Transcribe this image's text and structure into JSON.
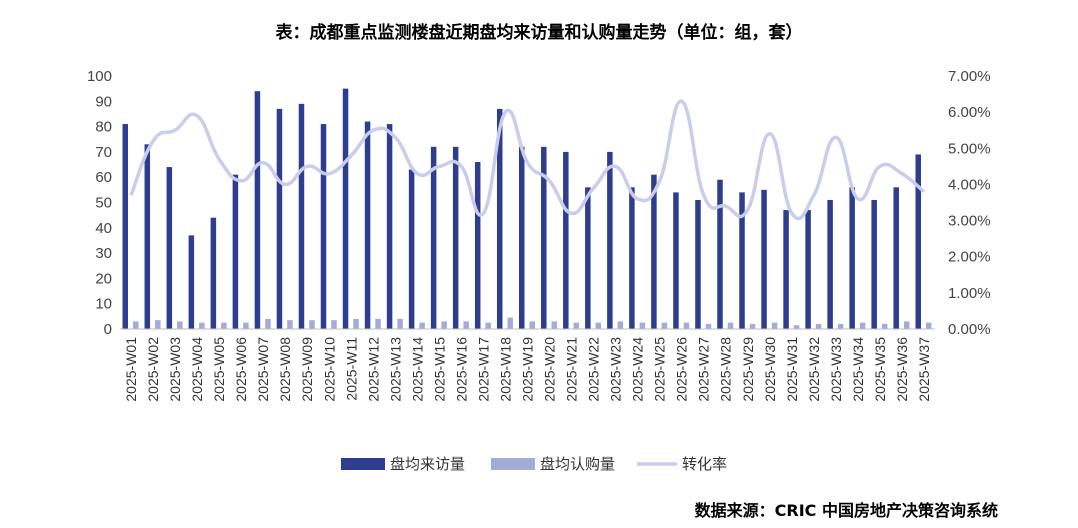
{
  "title": "表：成都重点监测楼盘近期盘均来访量和认购量走势（单位：组，套）",
  "source": "数据来源：CRIC 中国房地产决策咨询系统",
  "colors": {
    "visits": "#2e3d8f",
    "subscriptions": "#a3acd9",
    "conversion": "#c9cdea"
  },
  "chart_data": {
    "type": "bar",
    "categories": [
      "2025-W01",
      "2025-W02",
      "2025-W03",
      "2025-W04",
      "2025-W05",
      "2025-W06",
      "2025-W07",
      "2025-W08",
      "2025-W09",
      "2025-W10",
      "2025-W11",
      "2025-W12",
      "2025-W13",
      "2025-W14",
      "2025-W15",
      "2025-W16",
      "2025-W17",
      "2025-W18",
      "2025-W19",
      "2025-W20",
      "2025-W21",
      "2025-W22",
      "2025-W23",
      "2025-W24",
      "2025-W25",
      "2025-W26",
      "2025-W27",
      "2025-W28",
      "2025-W29",
      "2025-W30",
      "2025-W31",
      "2025-W32",
      "2025-W33",
      "2025-W34",
      "2025-W35",
      "2025-W36",
      "2025-W37"
    ],
    "series": [
      {
        "name": "盘均来访量",
        "type": "bar",
        "axis": "left",
        "values": [
          81,
          73,
          64,
          37,
          44,
          61,
          94,
          87,
          89,
          81,
          95,
          82,
          81,
          63,
          72,
          72,
          66,
          87,
          72,
          72,
          70,
          56,
          70,
          56,
          61,
          54,
          51,
          59,
          54,
          55,
          47,
          47,
          51,
          56,
          51,
          56,
          69
        ]
      },
      {
        "name": "盘均认购量",
        "type": "bar",
        "axis": "left",
        "values": [
          3,
          3.5,
          3,
          2.5,
          2.5,
          2.5,
          4,
          3.5,
          3.5,
          3.5,
          4,
          4,
          4,
          2.5,
          3,
          3,
          2.5,
          4.5,
          3,
          3,
          2.5,
          2.5,
          3,
          2.5,
          2.5,
          2.5,
          2,
          2.5,
          2,
          2.5,
          1.5,
          2,
          2,
          2.5,
          2,
          3,
          2.5
        ]
      },
      {
        "name": "转化率",
        "type": "line",
        "axis": "right",
        "values": [
          0.037,
          0.052,
          0.055,
          0.059,
          0.047,
          0.041,
          0.046,
          0.04,
          0.045,
          0.043,
          0.048,
          0.055,
          0.053,
          0.043,
          0.045,
          0.045,
          0.032,
          0.06,
          0.046,
          0.041,
          0.032,
          0.039,
          0.045,
          0.036,
          0.041,
          0.063,
          0.037,
          0.034,
          0.033,
          0.054,
          0.032,
          0.037,
          0.053,
          0.036,
          0.045,
          0.043,
          0.038
        ]
      }
    ],
    "y_left": {
      "ylim": [
        0,
        100
      ],
      "ticks": [
        "0",
        "10",
        "20",
        "30",
        "40",
        "50",
        "60",
        "70",
        "80",
        "90",
        "100"
      ]
    },
    "y_right": {
      "ylim": [
        0,
        0.07
      ],
      "ticks": [
        "0.00%",
        "1.00%",
        "2.00%",
        "3.00%",
        "4.00%",
        "5.00%",
        "6.00%",
        "7.00%"
      ]
    },
    "grid": false,
    "legend": {
      "position": "bottom",
      "items": [
        "盘均来访量",
        "盘均认购量",
        "转化率"
      ]
    }
  }
}
